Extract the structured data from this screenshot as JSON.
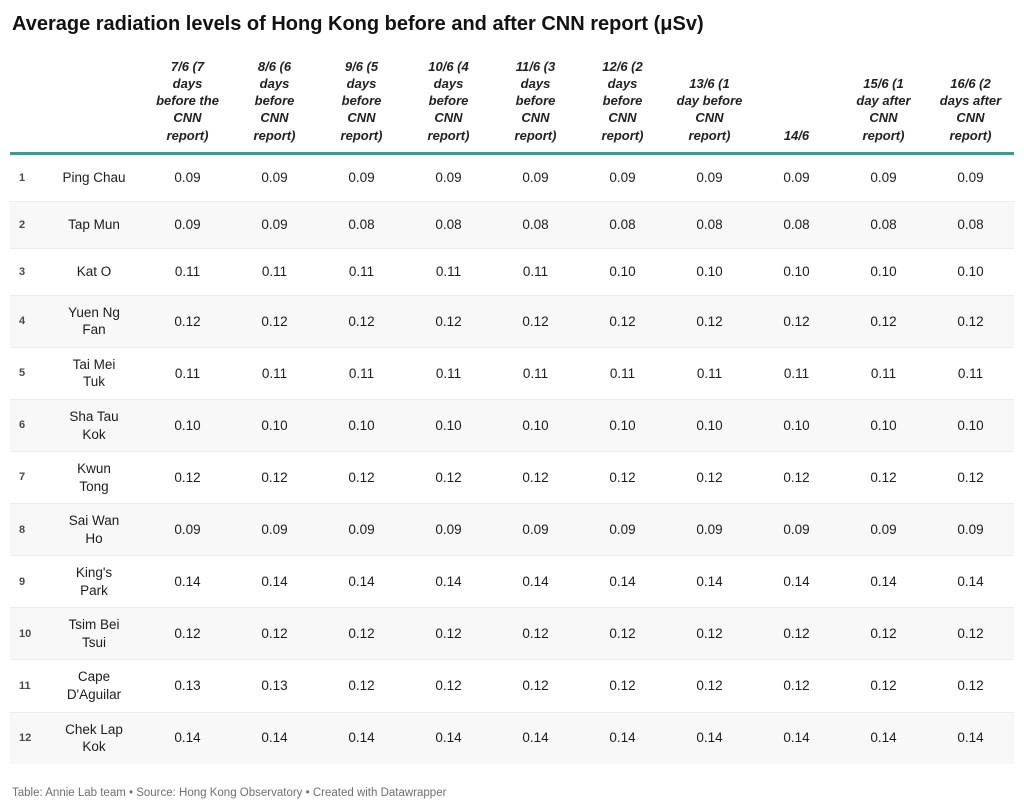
{
  "title": "Average radiation levels of Hong Kong before and after CNN report (μSv)",
  "footer": {
    "text": "Table: Annie Lab team • Source: Hong Kong Observatory • Created with Datawrapper"
  },
  "colors": {
    "header_rule": "#3f9c8d",
    "alt_row_bg": "#f8f8f8",
    "row_divider": "#ececec",
    "footer_text": "#6f6f6f"
  },
  "chart_data": {
    "type": "table",
    "title": "Average radiation levels of Hong Kong before and after CNN report (μSv)",
    "unit": "μSv",
    "columns": [
      "7/6 (7 days before the CNN report)",
      "8/6 (6 days before CNN report)",
      "9/6 (5 days before CNN report)",
      "10/6 (4 days before CNN report)",
      "11/6 (3 days before CNN report)",
      "12/6 (2 days before CNN report)",
      "13/6 (1 day before CNN report)",
      "14/6",
      "15/6 (1 day after CNN report)",
      "16/6 (2 days after CNN report)"
    ],
    "rows": [
      {
        "num": "1",
        "name": "Ping Chau",
        "values": [
          "0.09",
          "0.09",
          "0.09",
          "0.09",
          "0.09",
          "0.09",
          "0.09",
          "0.09",
          "0.09",
          "0.09"
        ]
      },
      {
        "num": "2",
        "name": "Tap Mun",
        "values": [
          "0.09",
          "0.09",
          "0.08",
          "0.08",
          "0.08",
          "0.08",
          "0.08",
          "0.08",
          "0.08",
          "0.08"
        ]
      },
      {
        "num": "3",
        "name": "Kat O",
        "values": [
          "0.11",
          "0.11",
          "0.11",
          "0.11",
          "0.11",
          "0.10",
          "0.10",
          "0.10",
          "0.10",
          "0.10"
        ]
      },
      {
        "num": "4",
        "name": "Yuen Ng Fan",
        "values": [
          "0.12",
          "0.12",
          "0.12",
          "0.12",
          "0.12",
          "0.12",
          "0.12",
          "0.12",
          "0.12",
          "0.12"
        ]
      },
      {
        "num": "5",
        "name": "Tai Mei Tuk",
        "values": [
          "0.11",
          "0.11",
          "0.11",
          "0.11",
          "0.11",
          "0.11",
          "0.11",
          "0.11",
          "0.11",
          "0.11"
        ]
      },
      {
        "num": "6",
        "name": "Sha Tau Kok",
        "values": [
          "0.10",
          "0.10",
          "0.10",
          "0.10",
          "0.10",
          "0.10",
          "0.10",
          "0.10",
          "0.10",
          "0.10"
        ]
      },
      {
        "num": "7",
        "name": "Kwun Tong",
        "values": [
          "0.12",
          "0.12",
          "0.12",
          "0.12",
          "0.12",
          "0.12",
          "0.12",
          "0.12",
          "0.12",
          "0.12"
        ]
      },
      {
        "num": "8",
        "name": "Sai Wan Ho",
        "values": [
          "0.09",
          "0.09",
          "0.09",
          "0.09",
          "0.09",
          "0.09",
          "0.09",
          "0.09",
          "0.09",
          "0.09"
        ]
      },
      {
        "num": "9",
        "name": "King's Park",
        "values": [
          "0.14",
          "0.14",
          "0.14",
          "0.14",
          "0.14",
          "0.14",
          "0.14",
          "0.14",
          "0.14",
          "0.14"
        ]
      },
      {
        "num": "10",
        "name": "Tsim Bei Tsui",
        "values": [
          "0.12",
          "0.12",
          "0.12",
          "0.12",
          "0.12",
          "0.12",
          "0.12",
          "0.12",
          "0.12",
          "0.12"
        ]
      },
      {
        "num": "11",
        "name": "Cape D'Aguilar",
        "values": [
          "0.13",
          "0.13",
          "0.12",
          "0.12",
          "0.12",
          "0.12",
          "0.12",
          "0.12",
          "0.12",
          "0.12"
        ]
      },
      {
        "num": "12",
        "name": "Chek Lap Kok",
        "values": [
          "0.14",
          "0.14",
          "0.14",
          "0.14",
          "0.14",
          "0.14",
          "0.14",
          "0.14",
          "0.14",
          "0.14"
        ]
      }
    ]
  }
}
